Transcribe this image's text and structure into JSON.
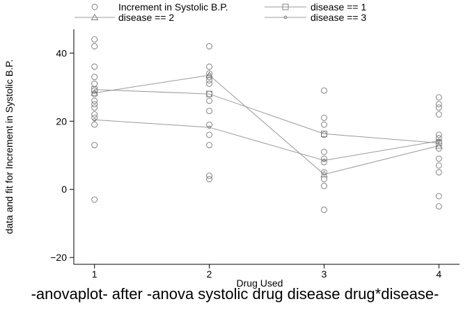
{
  "chart_data": {
    "type": "scatter",
    "xlabel": "Drug Used",
    "ylabel": "data and fit for Increment in Systolic B.P.",
    "x_ticks": [
      1,
      2,
      3,
      4
    ],
    "y_ticks": [
      -20,
      0,
      20,
      40
    ],
    "xlim": [
      0.82,
      4.18
    ],
    "ylim": [
      -22,
      47
    ],
    "grid": false,
    "legend_position": "top",
    "scatter": {
      "name": "Increment in Systolic B.P.",
      "points": [
        [
          1,
          44
        ],
        [
          1,
          42
        ],
        [
          1,
          36
        ],
        [
          1,
          33
        ],
        [
          1,
          31
        ],
        [
          1,
          29
        ],
        [
          1,
          28
        ],
        [
          1,
          26
        ],
        [
          1,
          25
        ],
        [
          1,
          24
        ],
        [
          1,
          22
        ],
        [
          1,
          21
        ],
        [
          1,
          19
        ],
        [
          1,
          13
        ],
        [
          1,
          -3
        ],
        [
          2,
          42
        ],
        [
          2,
          36
        ],
        [
          2,
          34
        ],
        [
          2,
          33
        ],
        [
          2,
          32
        ],
        [
          2,
          31
        ],
        [
          2,
          28
        ],
        [
          2,
          26
        ],
        [
          2,
          23
        ],
        [
          2,
          19
        ],
        [
          2,
          16
        ],
        [
          2,
          13
        ],
        [
          2,
          4
        ],
        [
          2,
          3
        ],
        [
          3,
          29
        ],
        [
          3,
          21
        ],
        [
          3,
          19
        ],
        [
          3,
          16
        ],
        [
          3,
          11
        ],
        [
          3,
          9
        ],
        [
          3,
          8
        ],
        [
          3,
          5
        ],
        [
          3,
          3
        ],
        [
          3,
          1
        ],
        [
          3,
          -6
        ],
        [
          4,
          27
        ],
        [
          4,
          25
        ],
        [
          4,
          24
        ],
        [
          4,
          22
        ],
        [
          4,
          16
        ],
        [
          4,
          15
        ],
        [
          4,
          14
        ],
        [
          4,
          12
        ],
        [
          4,
          9
        ],
        [
          4,
          7
        ],
        [
          4,
          5
        ],
        [
          4,
          -2
        ],
        [
          4,
          -5
        ]
      ]
    },
    "series": [
      {
        "name": "disease == 1",
        "marker": "square",
        "x": [
          1,
          2,
          3,
          4
        ],
        "values": [
          29.3,
          28.0,
          16.3,
          13.6
        ]
      },
      {
        "name": "disease == 2",
        "marker": "triangle",
        "x": [
          1,
          2,
          3,
          4
        ],
        "values": [
          28.3,
          33.5,
          4.4,
          12.8
        ]
      },
      {
        "name": "disease == 3",
        "marker": "small-circle",
        "x": [
          1,
          2,
          3,
          4
        ],
        "values": [
          20.4,
          18.2,
          8.5,
          14.2
        ]
      }
    ]
  },
  "legend": [
    {
      "label": "Increment in Systolic B.P.",
      "marker": "circle"
    },
    {
      "label": "disease == 1",
      "marker": "square"
    },
    {
      "label": "disease == 2",
      "marker": "triangle"
    },
    {
      "label": "disease == 3",
      "marker": "small-circle"
    }
  ],
  "caption": "-anovaplot- after -anova systolic drug disease drug*disease-",
  "colors": {
    "marker": "#777777",
    "line": "#9a9a9a",
    "axis": "#000000"
  }
}
